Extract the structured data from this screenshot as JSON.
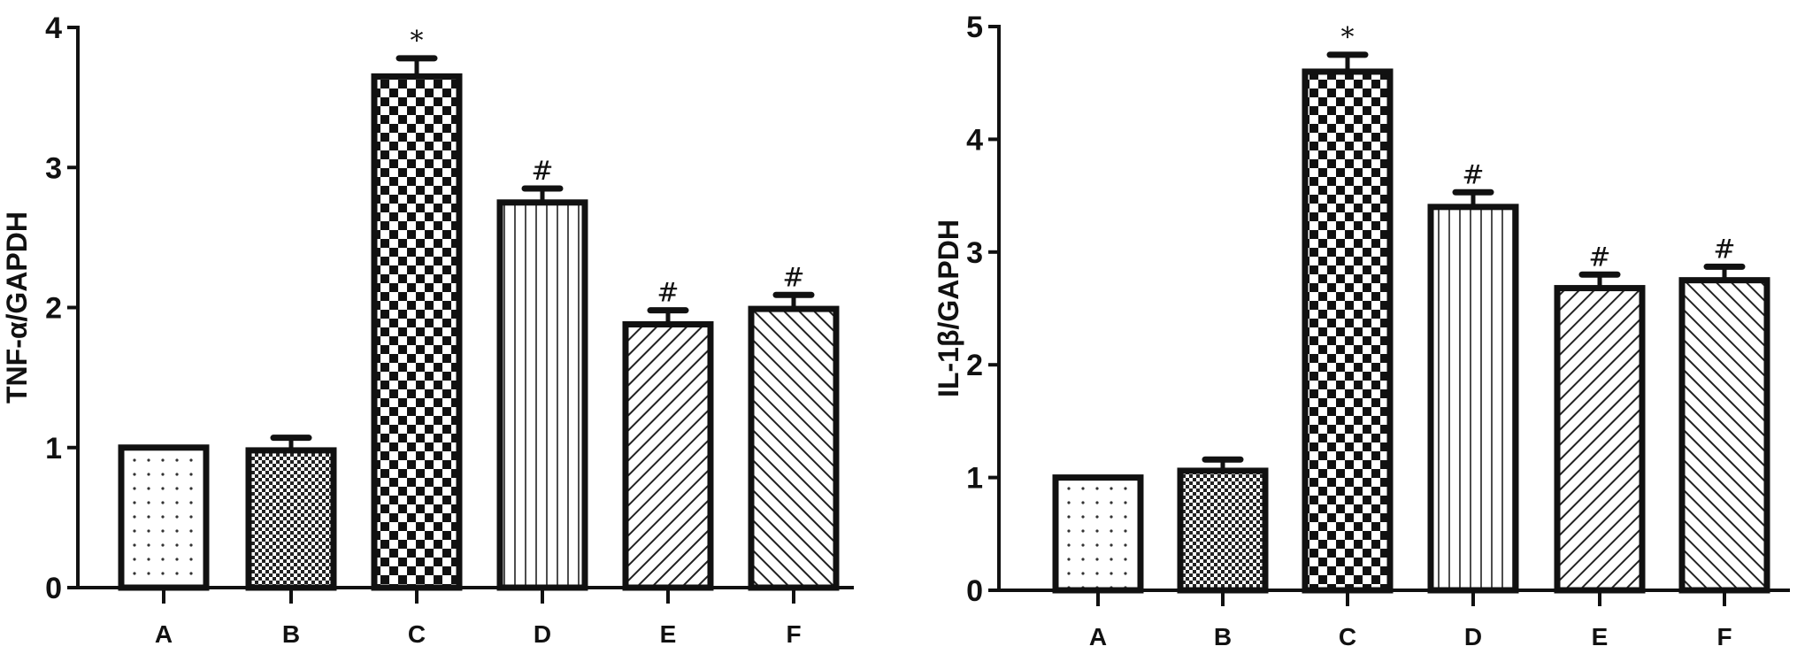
{
  "chart_data": [
    {
      "type": "bar",
      "ylabel": "TNF-α/GAPDH",
      "xlabel": "",
      "categories": [
        "A",
        "B",
        "C",
        "D",
        "E",
        "F"
      ],
      "values": [
        1.0,
        0.98,
        3.65,
        2.75,
        1.88,
        1.99
      ],
      "errors": [
        0.0,
        0.09,
        0.13,
        0.1,
        0.1,
        0.1
      ],
      "annotations": [
        "",
        "",
        "*",
        "#",
        "#",
        "#"
      ],
      "patterns": [
        "dots",
        "fine-checker",
        "checker",
        "vertical-lines",
        "diagonal-forward",
        "diagonal-back"
      ],
      "ylim": [
        0,
        4
      ],
      "yticks": [
        "0",
        "1",
        "2",
        "3",
        "4"
      ],
      "grid": false
    },
    {
      "type": "bar",
      "ylabel": "IL-1β/GAPDH",
      "xlabel": "",
      "categories": [
        "A",
        "B",
        "C",
        "D",
        "E",
        "F"
      ],
      "values": [
        1.0,
        1.06,
        4.6,
        3.4,
        2.68,
        2.75
      ],
      "errors": [
        0.0,
        0.1,
        0.15,
        0.13,
        0.12,
        0.12
      ],
      "annotations": [
        "",
        "",
        "*",
        "#",
        "#",
        "#"
      ],
      "patterns": [
        "dots",
        "fine-checker",
        "checker",
        "vertical-lines",
        "diagonal-forward",
        "diagonal-back"
      ],
      "ylim": [
        0,
        5
      ],
      "yticks": [
        "0",
        "1",
        "2",
        "3",
        "4",
        "5"
      ],
      "grid": false
    }
  ],
  "colors": {
    "stroke": "#111111",
    "background": "#ffffff"
  }
}
